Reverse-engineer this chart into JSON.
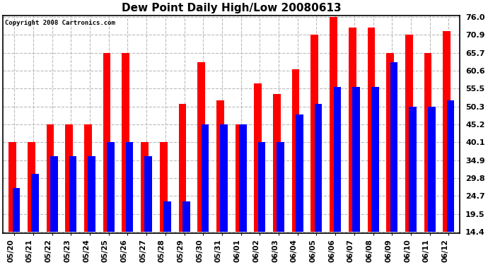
{
  "title": "Dew Point Daily High/Low 20080613",
  "copyright": "Copyright 2008 Cartronics.com",
  "dates": [
    "05/20",
    "05/21",
    "05/22",
    "05/23",
    "05/24",
    "05/25",
    "05/26",
    "05/27",
    "05/28",
    "05/29",
    "05/30",
    "05/31",
    "06/01",
    "06/02",
    "06/03",
    "06/04",
    "06/05",
    "06/06",
    "06/07",
    "06/08",
    "06/09",
    "06/10",
    "06/11",
    "06/12"
  ],
  "highs": [
    40.1,
    40.1,
    45.2,
    45.2,
    45.2,
    65.7,
    65.7,
    40.1,
    40.1,
    51.0,
    63.0,
    52.0,
    45.2,
    57.0,
    54.0,
    61.0,
    70.9,
    76.0,
    73.0,
    73.0,
    65.7,
    70.9,
    65.7,
    72.0
  ],
  "lows": [
    27.0,
    31.0,
    36.0,
    36.0,
    36.0,
    40.1,
    40.1,
    36.0,
    23.0,
    23.0,
    45.2,
    45.2,
    45.2,
    40.1,
    40.1,
    48.0,
    51.0,
    56.0,
    56.0,
    56.0,
    63.0,
    50.3,
    50.3,
    52.0
  ],
  "bar_width": 0.4,
  "high_color": "#ff0000",
  "low_color": "#0000ff",
  "bg_color": "#ffffff",
  "plot_bg_color": "#ffffff",
  "grid_color": "#bbbbbb",
  "yticks": [
    14.4,
    19.5,
    24.7,
    29.8,
    34.9,
    40.1,
    45.2,
    50.3,
    55.5,
    60.6,
    65.7,
    70.9,
    76.0
  ],
  "ymin": 14.4,
  "ymax": 76.0,
  "xlabel_rotation": 90,
  "bar_gap": 0.0
}
